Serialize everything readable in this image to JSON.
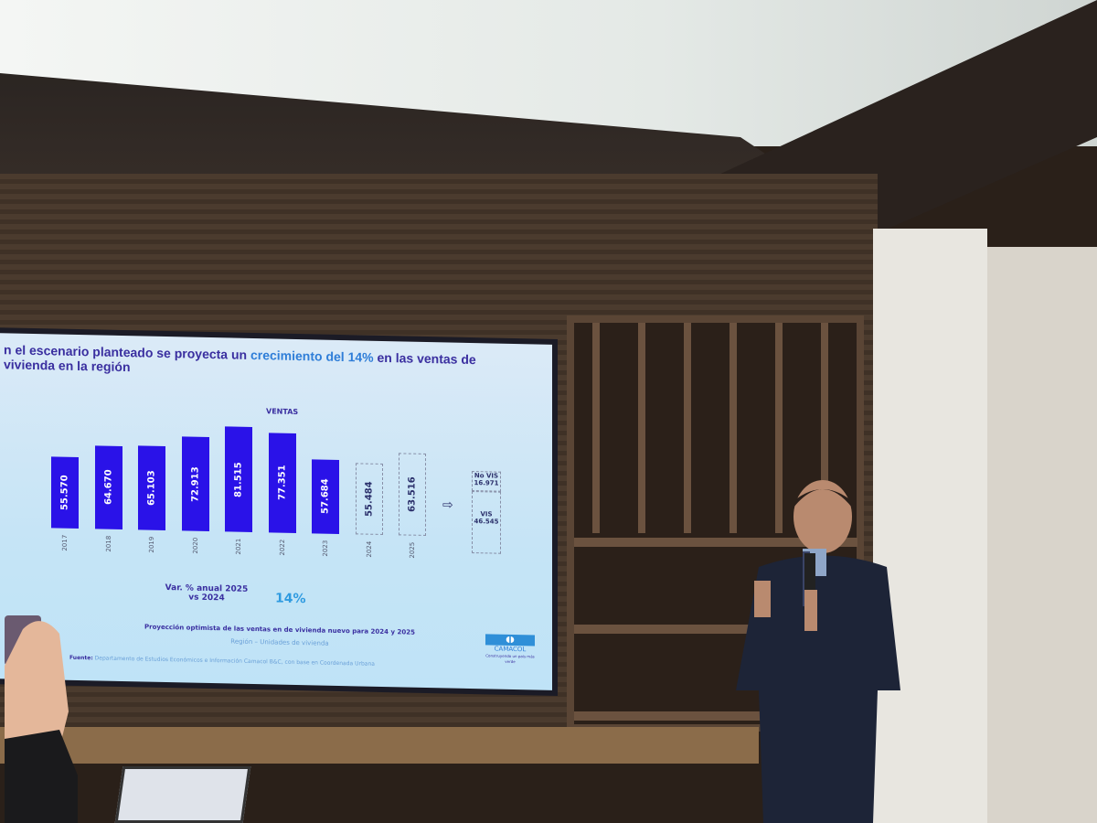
{
  "slide": {
    "title_part1": "n el escenario planteado se proyecta un",
    "title_highlight": "crecimiento del 14%",
    "title_part2": "en las ventas de",
    "title_line2": "vivienda en la región",
    "chart_title": "VENTAS",
    "breakdown": {
      "no_vis_label": "No VIS",
      "no_vis_value": "16.971",
      "vis_label": "VIS",
      "vis_value": "46.545"
    },
    "variation_label": "Var. % anual 2025 vs 2024",
    "variation_value": "14%",
    "caption": "Proyección optimista de las ventas en de vivienda nuevo para 2024 y 2025",
    "caption_sub": "Región – Unidades de vivienda",
    "source_label": "Fuente:",
    "source": "Departamento de Estudios Económicos e Información Camacol B&C, con base en Coordenada Urbana",
    "logo": "CAMACOL",
    "logo_tagline": "Construyendo un país más verde",
    "colors": {
      "bar": "#2a12e8",
      "title": "#3a2fa0",
      "highlight": "#2f7ed8"
    }
  },
  "chart_data": {
    "type": "bar",
    "title": "VENTAS",
    "categories": [
      "2017",
      "2018",
      "2019",
      "2020",
      "2021",
      "2022",
      "2023",
      "2024",
      "2025"
    ],
    "values": [
      55570,
      64670,
      65103,
      72913,
      81515,
      77351,
      57684,
      55484,
      63516
    ],
    "labels": [
      "55.570",
      "64.670",
      "65.103",
      "72.913",
      "81.515",
      "77.351",
      "57.684",
      "55.484",
      "63.516"
    ],
    "projected": [
      false,
      false,
      false,
      false,
      false,
      false,
      false,
      true,
      true
    ],
    "grid": false
  }
}
